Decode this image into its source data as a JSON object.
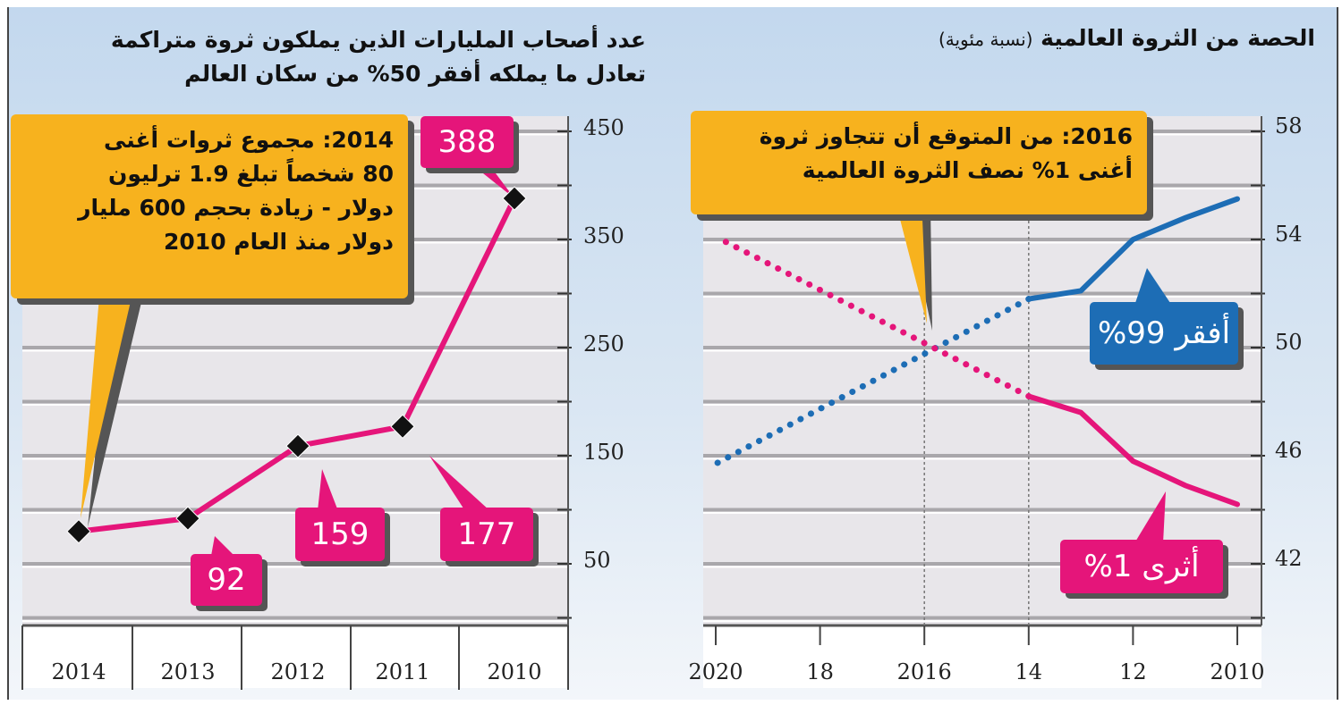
{
  "colors": {
    "pink": "#e5157a",
    "blue": "#1d6db5",
    "callout": "#f7b21e",
    "marker": "#111111"
  },
  "left": {
    "title_lines": [
      "عدد أصحاب المليارات الذين يملكون ثروة متراكمة",
      "تعادل ما يملكه أفقر 50% من سكان العالم"
    ],
    "callout_lines": [
      "2014: مجموع ثروات أغنى",
      "80 شخصاً تبلغ 1.9 ترليون",
      "دولار - زيادة بحجم 600 مليار",
      "دولار منذ العام 2010"
    ],
    "labels": {
      "2010": "388",
      "2011": "177",
      "2012": "159",
      "2013": "92"
    }
  },
  "right": {
    "title": "الحصة من الثروة العالمية",
    "title_note": "(نسبة مئوية)",
    "callout_lines": [
      "2016: من المتوقع أن تتجاوز ثروة",
      "أغنى 1% نصف الثروة العالمية"
    ],
    "poorest_label": "أفقر 99%",
    "richest_label": "أثرى 1%"
  },
  "chart_data": [
    {
      "type": "line",
      "title": "عدد أصحاب المليارات الذين يملكون ثروة متراكمة تعادل ما يملكه أفقر 50% من سكان العالم",
      "categories": [
        "2014",
        "2013",
        "2012",
        "2011",
        "2010"
      ],
      "values": [
        80,
        92,
        159,
        177,
        388
      ],
      "yticks": [
        "450",
        "350",
        "250",
        "150",
        "50"
      ],
      "ylim": [
        50,
        450
      ],
      "grid": true,
      "markers": "diamond",
      "x_reversed": true
    },
    {
      "type": "line",
      "title": "الحصة من الثروة العالمية (نسبة مئوية)",
      "xticks": [
        "2020",
        "18",
        "2016",
        "14",
        "12",
        "2010"
      ],
      "yticks": [
        "58",
        "54",
        "50",
        "46",
        "42"
      ],
      "ylim": [
        42,
        58
      ],
      "xlim": [
        2010,
        2020
      ],
      "x_reversed": true,
      "grid": true,
      "series": [
        {
          "name": "أفقر 99%",
          "color": "#1d6db5",
          "x": [
            2010,
            2011,
            2012,
            2013,
            2014
          ],
          "y": [
            55.5,
            54.8,
            54.0,
            52.1,
            51.8
          ],
          "projection": {
            "x": [
              2014,
              2020
            ],
            "y": [
              51.8,
              45.7
            ]
          }
        },
        {
          "name": "أثرى 1%",
          "color": "#e5157a",
          "x": [
            2010,
            2011,
            2012,
            2013,
            2014
          ],
          "y": [
            44.2,
            44.9,
            45.8,
            47.6,
            48.2
          ],
          "projection": {
            "x": [
              2014,
              2020
            ],
            "y": [
              48.2,
              54.1
            ]
          }
        }
      ]
    }
  ]
}
